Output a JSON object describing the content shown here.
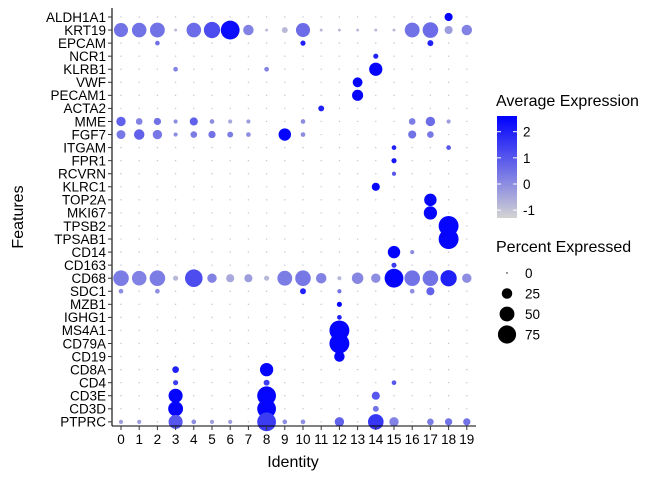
{
  "chart_data": {
    "type": "dotplot",
    "xlabel": "Identity",
    "ylabel": "Features",
    "clusters": [
      "0",
      "1",
      "2",
      "3",
      "4",
      "5",
      "6",
      "7",
      "8",
      "9",
      "10",
      "11",
      "12",
      "13",
      "14",
      "15",
      "16",
      "17",
      "18",
      "19"
    ],
    "genes": [
      "ALDH1A1",
      "KRT19",
      "EPCAM",
      "NCR1",
      "KLRB1",
      "VWF",
      "PECAM1",
      "ACTA2",
      "MME",
      "FGF7",
      "ITGAM",
      "FPR1",
      "RCVRN",
      "KLRC1",
      "TOP2A",
      "MKI67",
      "TPSB2",
      "TPSAB1",
      "CD14",
      "CD163",
      "CD68",
      "SDC1",
      "MZB1",
      "IGHG1",
      "MS4A1",
      "CD79A",
      "CD19",
      "CD8A",
      "CD4",
      "CD3E",
      "CD3D",
      "PTPRC"
    ],
    "color_legend": {
      "title": "Average Expression",
      "ticks": [
        2,
        1,
        0,
        -1
      ],
      "range": [
        -1.3,
        2.6
      ],
      "low_color": "#d3d3d3",
      "high_color": "#0000ff"
    },
    "size_legend": {
      "title": "Percent Expressed",
      "ticks": [
        0,
        25,
        50,
        75
      ]
    },
    "points": [
      {
        "g": "ALDH1A1",
        "c": 18,
        "p": 15,
        "e": 2.5
      },
      {
        "g": "KRT19",
        "c": 0,
        "p": 45,
        "e": 0.5
      },
      {
        "g": "KRT19",
        "c": 1,
        "p": 48,
        "e": 0.5
      },
      {
        "g": "KRT19",
        "c": 2,
        "p": 50,
        "e": 0.5
      },
      {
        "g": "KRT19",
        "c": 3,
        "p": 2,
        "e": -0.8
      },
      {
        "g": "KRT19",
        "c": 4,
        "p": 48,
        "e": 0.6
      },
      {
        "g": "KRT19",
        "c": 5,
        "p": 60,
        "e": 1.2
      },
      {
        "g": "KRT19",
        "c": 6,
        "p": 80,
        "e": 2.4
      },
      {
        "g": "KRT19",
        "c": 7,
        "p": 25,
        "e": 0.2
      },
      {
        "g": "KRT19",
        "c": 8,
        "p": 2,
        "e": -0.8
      },
      {
        "g": "KRT19",
        "c": 9,
        "p": 8,
        "e": -0.8
      },
      {
        "g": "KRT19",
        "c": 10,
        "p": 45,
        "e": 0.6
      },
      {
        "g": "KRT19",
        "c": 11,
        "p": 2,
        "e": -0.8
      },
      {
        "g": "KRT19",
        "c": 12,
        "p": 2,
        "e": -0.8
      },
      {
        "g": "KRT19",
        "c": 13,
        "p": 2,
        "e": -0.8
      },
      {
        "g": "KRT19",
        "c": 14,
        "p": 2,
        "e": -0.8
      },
      {
        "g": "KRT19",
        "c": 15,
        "p": 2,
        "e": -0.8
      },
      {
        "g": "KRT19",
        "c": 16,
        "p": 50,
        "e": 0.5
      },
      {
        "g": "KRT19",
        "c": 17,
        "p": 55,
        "e": 0.6
      },
      {
        "g": "KRT19",
        "c": 18,
        "p": 15,
        "e": -0.3
      },
      {
        "g": "KRT19",
        "c": 19,
        "p": 25,
        "e": 0.2
      },
      {
        "g": "EPCAM",
        "c": 2,
        "p": 5,
        "e": 0.5
      },
      {
        "g": "EPCAM",
        "c": 10,
        "p": 6,
        "e": 2.0
      },
      {
        "g": "EPCAM",
        "c": 17,
        "p": 8,
        "e": 2.0
      },
      {
        "g": "NCR1",
        "c": 14,
        "p": 6,
        "e": 2.0
      },
      {
        "g": "KLRB1",
        "c": 3,
        "p": 5,
        "e": 0.2
      },
      {
        "g": "KLRB1",
        "c": 8,
        "p": 5,
        "e": 0.2
      },
      {
        "g": "KLRB1",
        "c": 14,
        "p": 40,
        "e": 2.5
      },
      {
        "g": "VWF",
        "c": 13,
        "p": 22,
        "e": 2.5
      },
      {
        "g": "PECAM1",
        "c": 13,
        "p": 28,
        "e": 2.5
      },
      {
        "g": "ACTA2",
        "c": 11,
        "p": 8,
        "e": 2.0
      },
      {
        "g": "MME",
        "c": 0,
        "p": 20,
        "e": 0.8
      },
      {
        "g": "MME",
        "c": 1,
        "p": 10,
        "e": 0.2
      },
      {
        "g": "MME",
        "c": 2,
        "p": 12,
        "e": 0.5
      },
      {
        "g": "MME",
        "c": 3,
        "p": 4,
        "e": 0.0
      },
      {
        "g": "MME",
        "c": 4,
        "p": 15,
        "e": 0.8
      },
      {
        "g": "MME",
        "c": 5,
        "p": 5,
        "e": 0.0
      },
      {
        "g": "MME",
        "c": 6,
        "p": 4,
        "e": -0.5
      },
      {
        "g": "MME",
        "c": 7,
        "p": 4,
        "e": -0.3
      },
      {
        "g": "MME",
        "c": 10,
        "p": 5,
        "e": 0.0
      },
      {
        "g": "MME",
        "c": 16,
        "p": 10,
        "e": 0.3
      },
      {
        "g": "MME",
        "c": 17,
        "p": 20,
        "e": 0.6
      },
      {
        "g": "MME",
        "c": 18,
        "p": 4,
        "e": -0.3
      },
      {
        "g": "FGF7",
        "c": 0,
        "p": 18,
        "e": 0.4
      },
      {
        "g": "FGF7",
        "c": 1,
        "p": 25,
        "e": 0.8
      },
      {
        "g": "FGF7",
        "c": 2,
        "p": 20,
        "e": 0.4
      },
      {
        "g": "FGF7",
        "c": 3,
        "p": 4,
        "e": 0.0
      },
      {
        "g": "FGF7",
        "c": 4,
        "p": 10,
        "e": 0.3
      },
      {
        "g": "FGF7",
        "c": 5,
        "p": 12,
        "e": 0.5
      },
      {
        "g": "FGF7",
        "c": 6,
        "p": 8,
        "e": 0.3
      },
      {
        "g": "FGF7",
        "c": 7,
        "p": 5,
        "e": 0.0
      },
      {
        "g": "FGF7",
        "c": 9,
        "p": 35,
        "e": 2.5
      },
      {
        "g": "FGF7",
        "c": 10,
        "p": 5,
        "e": 0.0
      },
      {
        "g": "FGF7",
        "c": 16,
        "p": 15,
        "e": 0.5
      },
      {
        "g": "FGF7",
        "c": 17,
        "p": 10,
        "e": 0.4
      },
      {
        "g": "ITGAM",
        "c": 15,
        "p": 5,
        "e": 2.0
      },
      {
        "g": "ITGAM",
        "c": 18,
        "p": 5,
        "e": 1.0
      },
      {
        "g": "FPR1",
        "c": 15,
        "p": 6,
        "e": 2.2
      },
      {
        "g": "RCVRN",
        "c": 15,
        "p": 4,
        "e": 1.0
      },
      {
        "g": "KLRC1",
        "c": 14,
        "p": 15,
        "e": 2.5
      },
      {
        "g": "TOP2A",
        "c": 17,
        "p": 35,
        "e": 2.5
      },
      {
        "g": "MKI67",
        "c": 17,
        "p": 40,
        "e": 2.5
      },
      {
        "g": "TPSB2",
        "c": 18,
        "p": 90,
        "e": 2.5
      },
      {
        "g": "TPSAB1",
        "c": 18,
        "p": 90,
        "e": 2.5
      },
      {
        "g": "CD14",
        "c": 15,
        "p": 35,
        "e": 2.5
      },
      {
        "g": "CD14",
        "c": 16,
        "p": 4,
        "e": 0.0
      },
      {
        "g": "CD163",
        "c": 15,
        "p": 6,
        "e": 1.5
      },
      {
        "g": "CD68",
        "c": 0,
        "p": 55,
        "e": 0.3
      },
      {
        "g": "CD68",
        "c": 1,
        "p": 48,
        "e": 0.2
      },
      {
        "g": "CD68",
        "c": 2,
        "p": 55,
        "e": 0.3
      },
      {
        "g": "CD68",
        "c": 3,
        "p": 6,
        "e": -0.8
      },
      {
        "g": "CD68",
        "c": 4,
        "p": 70,
        "e": 1.2
      },
      {
        "g": "CD68",
        "c": 5,
        "p": 20,
        "e": 0.2
      },
      {
        "g": "CD68",
        "c": 6,
        "p": 15,
        "e": -0.5
      },
      {
        "g": "CD68",
        "c": 7,
        "p": 15,
        "e": -0.3
      },
      {
        "g": "CD68",
        "c": 8,
        "p": 6,
        "e": -0.8
      },
      {
        "g": "CD68",
        "c": 9,
        "p": 50,
        "e": 0.3
      },
      {
        "g": "CD68",
        "c": 10,
        "p": 55,
        "e": 0.4
      },
      {
        "g": "CD68",
        "c": 11,
        "p": 25,
        "e": 0.2
      },
      {
        "g": "CD68",
        "c": 12,
        "p": 4,
        "e": -0.8
      },
      {
        "g": "CD68",
        "c": 13,
        "p": 30,
        "e": 0.1
      },
      {
        "g": "CD68",
        "c": 14,
        "p": 20,
        "e": 0.0
      },
      {
        "g": "CD68",
        "c": 15,
        "p": 80,
        "e": 2.5
      },
      {
        "g": "CD68",
        "c": 16,
        "p": 55,
        "e": 0.5
      },
      {
        "g": "CD68",
        "c": 17,
        "p": 55,
        "e": 0.5
      },
      {
        "g": "CD68",
        "c": 18,
        "p": 60,
        "e": 2.0
      },
      {
        "g": "CD68",
        "c": 19,
        "p": 20,
        "e": 0.0
      },
      {
        "g": "SDC1",
        "c": 0,
        "p": 5,
        "e": 0.0
      },
      {
        "g": "SDC1",
        "c": 2,
        "p": 5,
        "e": 0.0
      },
      {
        "g": "SDC1",
        "c": 10,
        "p": 8,
        "e": 2.0
      },
      {
        "g": "SDC1",
        "c": 12,
        "p": 4,
        "e": 0.5
      },
      {
        "g": "SDC1",
        "c": 16,
        "p": 5,
        "e": 0.0
      },
      {
        "g": "SDC1",
        "c": 17,
        "p": 15,
        "e": 0.8
      },
      {
        "g": "MZB1",
        "c": 12,
        "p": 6,
        "e": 2.5
      },
      {
        "g": "IGHG1",
        "c": 12,
        "p": 5,
        "e": 2.0
      },
      {
        "g": "MS4A1",
        "c": 12,
        "p": 90,
        "e": 2.5
      },
      {
        "g": "CD79A",
        "c": 12,
        "p": 90,
        "e": 2.5
      },
      {
        "g": "CD19",
        "c": 12,
        "p": 25,
        "e": 2.5
      },
      {
        "g": "CD8A",
        "c": 3,
        "p": 10,
        "e": 2.0
      },
      {
        "g": "CD8A",
        "c": 8,
        "p": 40,
        "e": 2.5
      },
      {
        "g": "CD4",
        "c": 3,
        "p": 6,
        "e": 1.5
      },
      {
        "g": "CD4",
        "c": 8,
        "p": 8,
        "e": 1.5
      },
      {
        "g": "CD4",
        "c": 15,
        "p": 5,
        "e": 1.0
      },
      {
        "g": "CD3E",
        "c": 3,
        "p": 45,
        "e": 2.5
      },
      {
        "g": "CD3E",
        "c": 8,
        "p": 80,
        "e": 2.5
      },
      {
        "g": "CD3E",
        "c": 14,
        "p": 15,
        "e": 1.0
      },
      {
        "g": "CD3D",
        "c": 3,
        "p": 50,
        "e": 2.5
      },
      {
        "g": "CD3D",
        "c": 8,
        "p": 80,
        "e": 2.5
      },
      {
        "g": "CD3D",
        "c": 14,
        "p": 8,
        "e": 0.5
      },
      {
        "g": "PTPRC",
        "c": 0,
        "p": 4,
        "e": -0.3
      },
      {
        "g": "PTPRC",
        "c": 1,
        "p": 4,
        "e": -0.3
      },
      {
        "g": "PTPRC",
        "c": 3,
        "p": 45,
        "e": 1.0
      },
      {
        "g": "PTPRC",
        "c": 4,
        "p": 5,
        "e": 0.0
      },
      {
        "g": "PTPRC",
        "c": 5,
        "p": 4,
        "e": -0.3
      },
      {
        "g": "PTPRC",
        "c": 6,
        "p": 4,
        "e": -0.3
      },
      {
        "g": "PTPRC",
        "c": 8,
        "p": 80,
        "e": 1.5
      },
      {
        "g": "PTPRC",
        "c": 9,
        "p": 5,
        "e": 0.0
      },
      {
        "g": "PTPRC",
        "c": 10,
        "p": 5,
        "e": 0.0
      },
      {
        "g": "PTPRC",
        "c": 12,
        "p": 20,
        "e": 0.8
      },
      {
        "g": "PTPRC",
        "c": 14,
        "p": 55,
        "e": 1.6
      },
      {
        "g": "PTPRC",
        "c": 15,
        "p": 20,
        "e": 0.2
      },
      {
        "g": "PTPRC",
        "c": 17,
        "p": 10,
        "e": 0.3
      },
      {
        "g": "PTPRC",
        "c": 18,
        "p": 12,
        "e": 0.5
      },
      {
        "g": "PTPRC",
        "c": 19,
        "p": 12,
        "e": 0.5
      }
    ]
  }
}
